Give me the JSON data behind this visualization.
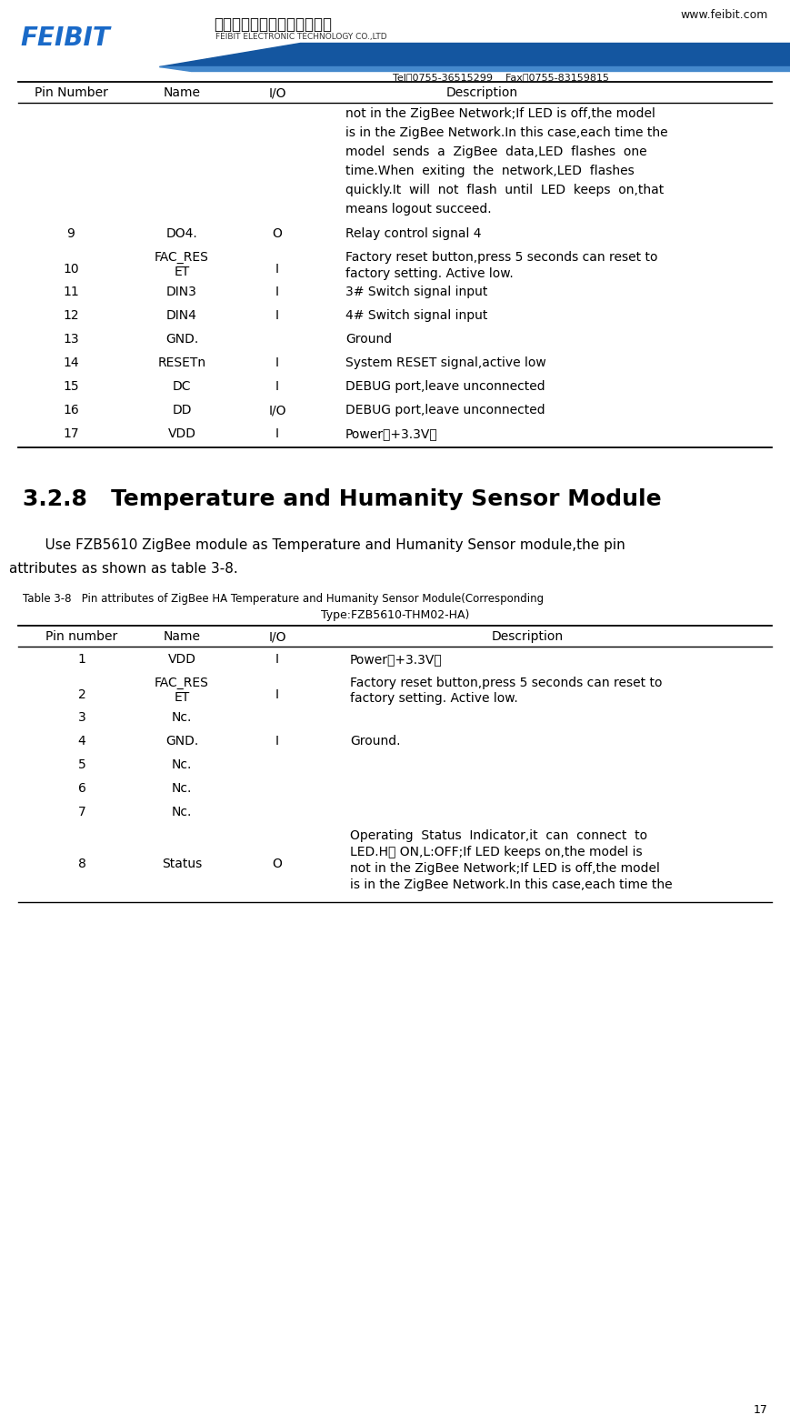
{
  "page_number": "17",
  "header": {
    "company_cn": "深圳市飞比电子科技有限公司",
    "company_en": "FEIBIT ELECTRONIC TECHNOLOGY CO.,LTD",
    "website": "www.feibit.com",
    "tel": "Tel：0755-36515299",
    "fax": "Fax：0755-83159815"
  },
  "bg_color": "#ffffff",
  "table1_desc0_lines": [
    "not in the ZigBee Network;If LED is off,the model",
    "is in the ZigBee Network.In this case,each time the",
    "model  sends  a  ZigBee  data,LED  flashes  one",
    "time.When  exiting  the  network,LED  flashes",
    "quickly.It  will  not  flash  until  LED  keeps  on,that",
    "means logout succeed."
  ],
  "table2_desc8_lines": [
    "Operating  Status  Indicator,it  can  connect  to",
    "LED.H： ON,L:OFF;If LED keeps on,the model is",
    "not in the ZigBee Network;If LED is off,the model",
    "is in the ZigBee Network.In this case,each time the"
  ],
  "section_title": "3.2.8   Temperature and Humanity Sensor Module",
  "table2_caption": "Table 3-8   Pin attributes of ZigBee HA Temperature and Humanity Sensor Module(Corresponding",
  "table2_type": "Type:FZB5610-THM02-HA)"
}
